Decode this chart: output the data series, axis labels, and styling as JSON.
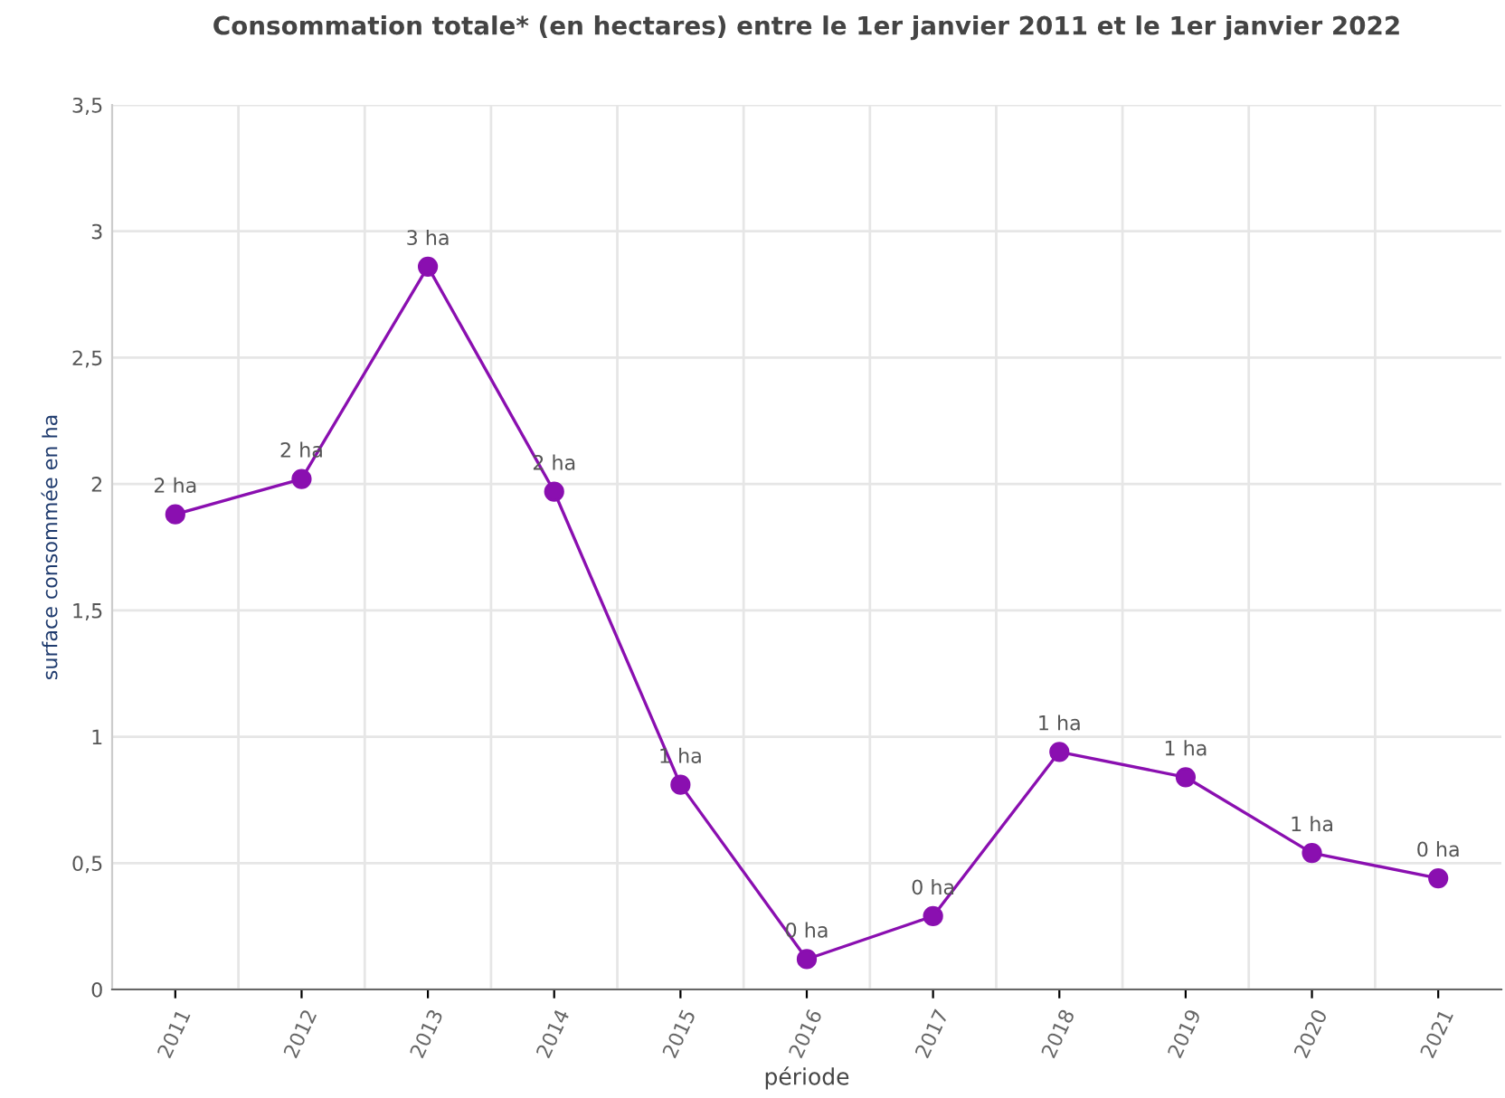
{
  "chart_data": {
    "type": "line",
    "title": "Consommation totale* (en hectares) entre le 1er janvier 2011 et le 1er janvier 2022",
    "xlabel": "période",
    "ylabel": "surface consommée en ha",
    "categories": [
      "2011",
      "2012",
      "2013",
      "2014",
      "2015",
      "2016",
      "2017",
      "2018",
      "2019",
      "2020",
      "2021"
    ],
    "series": [
      {
        "color": "#8a0fb0",
        "values": [
          1.88,
          2.02,
          2.86,
          1.97,
          0.81,
          0.12,
          0.29,
          0.94,
          0.84,
          0.54,
          0.44
        ],
        "value_labels": [
          "2 ha",
          "2 ha",
          "3 ha",
          "2 ha",
          "1 ha",
          "0 ha",
          "0 ha",
          "1 ha",
          "1 ha",
          "1 ha",
          "0 ha"
        ]
      }
    ],
    "ylim": [
      0,
      3.5
    ],
    "yticks": [
      0,
      {
        "value": 0.5,
        "label": "0,5"
      },
      1,
      {
        "value": 1.5,
        "label": "1,5"
      },
      2,
      {
        "value": 2.5,
        "label": "2,5"
      },
      3,
      {
        "value": 3.5,
        "label": "3,5"
      }
    ],
    "grid": true,
    "marker": "circle",
    "line_style": "solid",
    "legend": false
  }
}
